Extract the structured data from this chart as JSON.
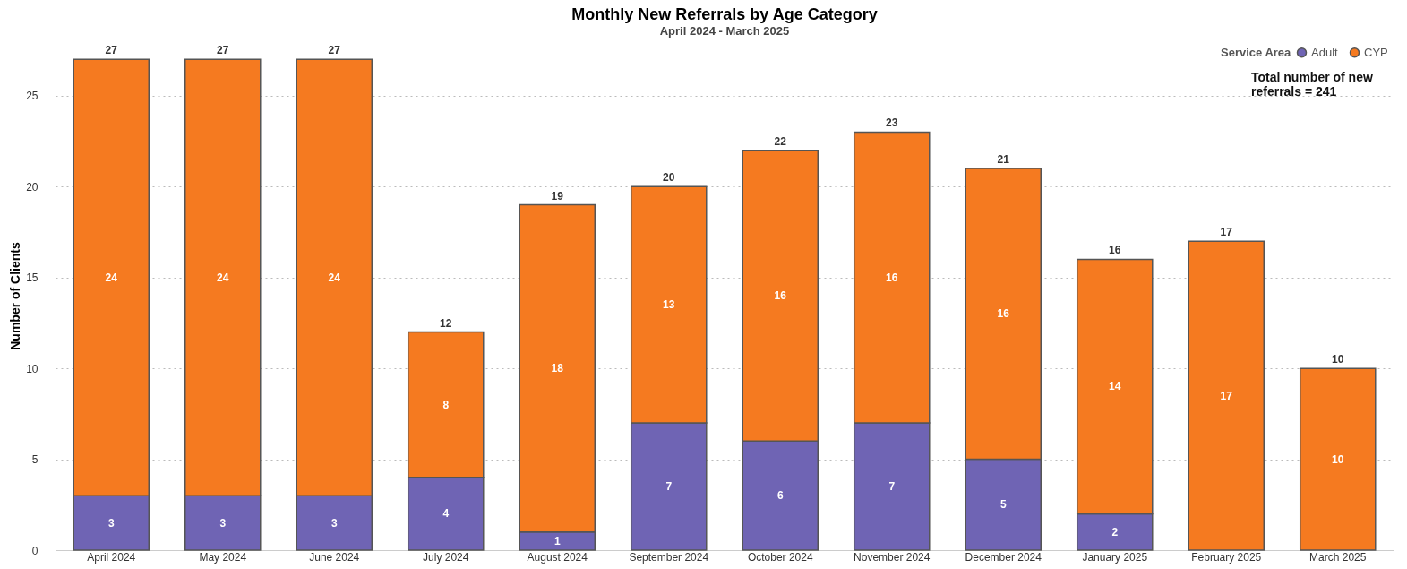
{
  "chart_data": {
    "type": "bar",
    "title": "Monthly New Referrals by Age Category",
    "subtitle": "April 2024 - March 2025",
    "ylabel": "Number of Clients",
    "legend_title": "Service Area",
    "categories": [
      "April 2024",
      "May 2024",
      "June 2024",
      "July 2024",
      "August 2024",
      "September 2024",
      "October 2024",
      "November 2024",
      "December 2024",
      "January 2025",
      "February 2025",
      "March 2025"
    ],
    "series": [
      {
        "name": "Adult",
        "color": "#6f64b4",
        "values": [
          3,
          3,
          3,
          4,
          1,
          7,
          6,
          7,
          5,
          2,
          null,
          null
        ]
      },
      {
        "name": "CYP",
        "color": "#f57a20",
        "values": [
          24,
          24,
          24,
          8,
          18,
          13,
          16,
          16,
          16,
          14,
          17,
          10
        ]
      }
    ],
    "stacked": true,
    "data_labels": true,
    "totals": [
      "27",
      "27",
      "27",
      "12",
      "19",
      "20",
      "22",
      "23",
      "21",
      "16",
      "17",
      "10"
    ],
    "ylim": [
      0,
      28
    ],
    "yticks": [
      0,
      5,
      10,
      15,
      20,
      25
    ],
    "grid": "y",
    "legend": "top right",
    "annotations": [
      "Total number of new referrals = 241"
    ]
  }
}
